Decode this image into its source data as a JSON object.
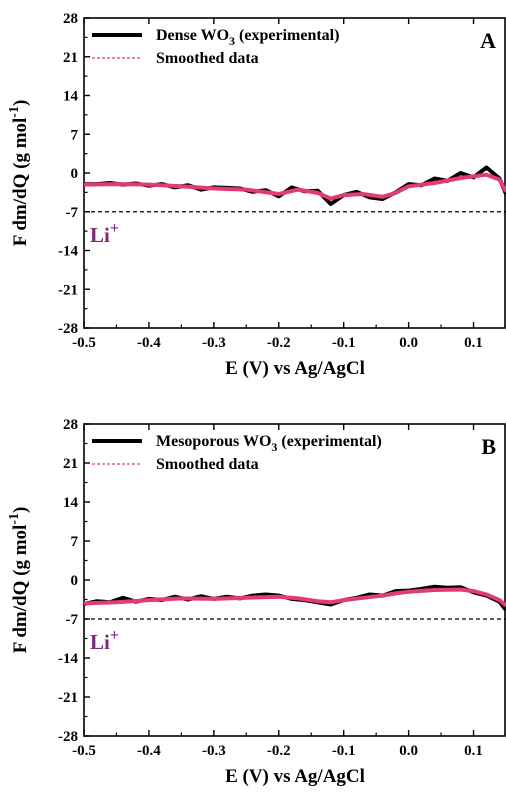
{
  "chart_data": [
    {
      "panel_label": "A",
      "type": "line",
      "xlabel": "E (V) vs Ag/AgCl",
      "ylabel": "F dm/dQ (g mol-1)",
      "ylabel_main": "F dm/dQ (g mol",
      "ylabel_sup": "-1",
      "ylabel_end": ")",
      "xlim": [
        -0.5,
        0.15
      ],
      "ylim": [
        -28,
        28
      ],
      "xticks": [
        -0.5,
        -0.4,
        -0.3,
        -0.2,
        -0.1,
        0.0,
        0.1
      ],
      "xtick_labels": [
        "-0.5",
        "-0.4",
        "-0.3",
        "-0.2",
        "-0.1",
        "0.0",
        "0.1"
      ],
      "yticks": [
        28,
        21,
        14,
        7,
        0,
        -7,
        -14,
        -21,
        -28
      ],
      "ytick_labels": [
        "28",
        "21",
        "14",
        "7",
        "0",
        "-7",
        "-14",
        "-21",
        "-28"
      ],
      "grid": false,
      "legend_position": "top-left",
      "colors": {
        "experimental": "#000000",
        "smoothed": "#e23a7a",
        "ion_label": "#7b2a77"
      },
      "series": [
        {
          "name": "Dense WO3 (experimental)",
          "legend_main": "Dense WO",
          "legend_sub": "3",
          "legend_end": " (experimental)",
          "style": "solid-thick-black",
          "x": [
            -0.5,
            -0.48,
            -0.46,
            -0.44,
            -0.42,
            -0.4,
            -0.38,
            -0.36,
            -0.34,
            -0.32,
            -0.3,
            -0.28,
            -0.26,
            -0.24,
            -0.22,
            -0.2,
            -0.18,
            -0.16,
            -0.14,
            -0.12,
            -0.1,
            -0.08,
            -0.06,
            -0.04,
            -0.02,
            0.0,
            0.02,
            0.04,
            0.06,
            0.08,
            0.1,
            0.12,
            0.14,
            0.15
          ],
          "values": [
            -2.0,
            -2.0,
            -1.8,
            -2.1,
            -1.9,
            -2.3,
            -2.0,
            -2.6,
            -2.2,
            -3.0,
            -2.6,
            -2.7,
            -2.8,
            -3.4,
            -3.1,
            -4.2,
            -2.6,
            -3.3,
            -3.2,
            -5.6,
            -4.0,
            -3.4,
            -4.4,
            -4.7,
            -3.5,
            -2.0,
            -2.2,
            -1.0,
            -1.4,
            0.0,
            -0.8,
            1.0,
            -1.0,
            -3.8
          ]
        },
        {
          "name": "Smoothed data",
          "legend_main": "Smoothed data",
          "style": "dashed-pink",
          "x": [
            -0.5,
            -0.45,
            -0.4,
            -0.35,
            -0.3,
            -0.25,
            -0.2,
            -0.17,
            -0.14,
            -0.12,
            -0.1,
            -0.07,
            -0.04,
            -0.02,
            0.0,
            0.04,
            0.08,
            0.1,
            0.12,
            0.14,
            0.15
          ],
          "values": [
            -2.1,
            -2.0,
            -2.1,
            -2.4,
            -2.8,
            -3.0,
            -3.8,
            -3.0,
            -3.6,
            -4.6,
            -4.0,
            -3.8,
            -4.3,
            -3.6,
            -2.4,
            -1.8,
            -0.9,
            -0.6,
            -0.3,
            -1.2,
            -3.4
          ]
        }
      ],
      "reference_line": {
        "y": -7,
        "style": "dashed",
        "label_main": "Li",
        "label_sup": "+"
      }
    },
    {
      "panel_label": "B",
      "type": "line",
      "xlabel": "E (V) vs Ag/AgCl",
      "ylabel": "F dm/dQ (g mol-1)",
      "ylabel_main": "F dm/dQ (g mol",
      "ylabel_sup": "-1",
      "ylabel_end": ")",
      "xlim": [
        -0.5,
        0.15
      ],
      "ylim": [
        -28,
        28
      ],
      "xticks": [
        -0.5,
        -0.4,
        -0.3,
        -0.2,
        -0.1,
        0.0,
        0.1
      ],
      "xtick_labels": [
        "-0.5",
        "-0.4",
        "-0.3",
        "-0.2",
        "-0.1",
        "0.0",
        "0.1"
      ],
      "yticks": [
        28,
        21,
        14,
        7,
        0,
        -7,
        -14,
        -21,
        -28
      ],
      "ytick_labels": [
        "28",
        "21",
        "14",
        "7",
        "0",
        "-7",
        "-14",
        "-21",
        "-28"
      ],
      "grid": false,
      "legend_position": "top-left",
      "colors": {
        "experimental": "#000000",
        "smoothed": "#e23a7a",
        "ion_label": "#7b2a77"
      },
      "series": [
        {
          "name": "Mesoporous WO3 (experimental)",
          "legend_main": "Mesoporous WO",
          "legend_sub": "3",
          "legend_end": " (experimental)",
          "style": "solid-thick-black",
          "x": [
            -0.5,
            -0.48,
            -0.46,
            -0.44,
            -0.42,
            -0.4,
            -0.38,
            -0.36,
            -0.34,
            -0.32,
            -0.3,
            -0.28,
            -0.26,
            -0.24,
            -0.22,
            -0.2,
            -0.18,
            -0.16,
            -0.14,
            -0.12,
            -0.1,
            -0.08,
            -0.06,
            -0.04,
            -0.02,
            0.0,
            0.02,
            0.04,
            0.06,
            0.08,
            0.1,
            0.12,
            0.14,
            0.15
          ],
          "values": [
            -4.3,
            -3.8,
            -4.0,
            -3.2,
            -3.9,
            -3.4,
            -3.6,
            -3.0,
            -3.5,
            -2.9,
            -3.4,
            -3.0,
            -3.3,
            -2.8,
            -2.6,
            -2.8,
            -3.4,
            -3.6,
            -4.0,
            -4.4,
            -3.6,
            -3.2,
            -2.6,
            -2.8,
            -2.0,
            -1.9,
            -1.6,
            -1.2,
            -1.4,
            -1.3,
            -2.2,
            -2.8,
            -3.9,
            -5.4
          ]
        },
        {
          "name": "Smoothed data",
          "legend_main": "Smoothed data",
          "style": "dashed-pink",
          "x": [
            -0.5,
            -0.45,
            -0.4,
            -0.35,
            -0.3,
            -0.25,
            -0.2,
            -0.17,
            -0.14,
            -0.12,
            -0.1,
            -0.07,
            -0.04,
            -0.02,
            0.0,
            0.04,
            0.08,
            0.1,
            0.12,
            0.14,
            0.15
          ],
          "values": [
            -4.2,
            -4.0,
            -3.6,
            -3.3,
            -3.4,
            -3.2,
            -3.0,
            -3.3,
            -3.8,
            -4.0,
            -3.6,
            -3.2,
            -2.8,
            -2.4,
            -2.1,
            -1.8,
            -1.7,
            -2.0,
            -2.6,
            -3.6,
            -4.6
          ]
        }
      ],
      "reference_line": {
        "y": -7,
        "style": "dashed",
        "label_main": "Li",
        "label_sup": "+"
      }
    }
  ]
}
